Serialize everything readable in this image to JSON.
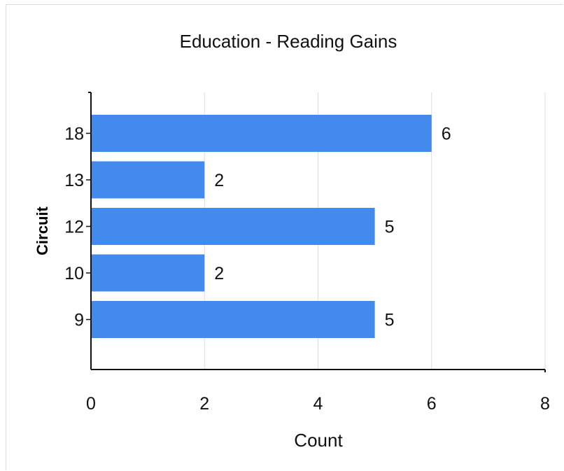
{
  "chart_data": {
    "type": "bar",
    "orientation": "horizontal",
    "title": "Education - Reading Gains",
    "xlabel": "Count",
    "ylabel": "Circuit",
    "categories": [
      "18",
      "13",
      "12",
      "10",
      "9"
    ],
    "values": [
      6,
      2,
      5,
      2,
      5
    ],
    "xlim": [
      0,
      8
    ],
    "xticks": [
      "0",
      "2",
      "4",
      "6",
      "8"
    ],
    "grid": "vertical",
    "bar_color": "#428bed",
    "grid_color": "#dddddd",
    "axis_color": "#111111"
  }
}
